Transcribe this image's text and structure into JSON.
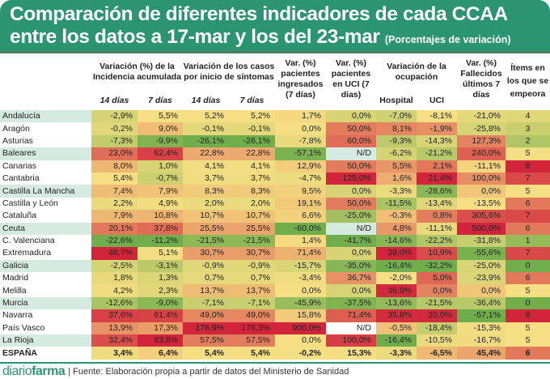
{
  "title_line1": "Comparación de diferentes indicadores de cada CCAA",
  "title_line2": "entre los datos a 17-mar y los del 23-mar",
  "title_sub": "(Porcentajes de variación)",
  "footer": {
    "logo_light": "diario",
    "logo_bold": "farma",
    "source": "| Fuente: Elaboración propia a partir de datos del Ministerio de Sanidad"
  },
  "colors": {
    "banner": "#2b9471",
    "low": "#6fae4a",
    "mid": "#f6df82",
    "high": "#d2243a",
    "nd_alt": "#d5ebe2"
  },
  "chart_data": {
    "type": "table",
    "group_headers": [
      "Variación (%)  de la Incidencia acumulada",
      "Variación de los casos por inicio de síntomas",
      "Var. (%) pacientes ingresados (7 días)",
      "Var. (%) pacientes en UCI (7 días)",
      "Variación de la ocupación",
      "Var. (%) Fallecidos últimos 7 días",
      "Ítems en los que se empeora"
    ],
    "sub_headers": [
      "14 días",
      "7 días",
      "14 días",
      "7 días",
      "Hospital",
      "UCI"
    ],
    "rows": [
      {
        "region": "Andalucía",
        "values": [
          "-2,9%",
          "5,5%",
          "5,2%",
          "5,2%",
          "1,7%",
          "0,0%",
          "-7,0%",
          "-8,1%",
          "-21,0%",
          "4"
        ]
      },
      {
        "region": "Aragón",
        "values": [
          "-0,2%",
          "9,0%",
          "-0,1%",
          "-0,1%",
          "0,0%",
          "50,0%",
          "8,1%",
          "-1,9%",
          "-25,8%",
          "3"
        ]
      },
      {
        "region": "Asturias",
        "values": [
          "-7,3%",
          "-9,9%",
          "-26,1%",
          "-26,1%",
          "-7,8%",
          "60,0%",
          "-9,3%",
          "-14,3%",
          "127,3%",
          "2"
        ]
      },
      {
        "region": "Baleares",
        "values": [
          "23,0%",
          "62,4%",
          "22,8%",
          "22,8%",
          "-57,1%",
          "N/D",
          "-6,2%",
          "-21,2%",
          "240,0%",
          "5"
        ]
      },
      {
        "region": "Canarias",
        "values": [
          "8,0%",
          "1,0%",
          "4,1%",
          "4,1%",
          "12,9%",
          "50,0%",
          "5,5%",
          "2,1%",
          "-11,1%",
          "8"
        ]
      },
      {
        "region": "Cantabria",
        "values": [
          "5,4%",
          "-0,7%",
          "3,7%",
          "3,7%",
          "-4,7%",
          "125,0%",
          "1,6%",
          "21,4%",
          "100,0%",
          "7"
        ]
      },
      {
        "region": "Castilla La Mancha",
        "values": [
          "7,4%",
          "7,9%",
          "8,3%",
          "8,3%",
          "9,5%",
          "0,0%",
          "-3,3%",
          "-28,6%",
          "0,0%",
          "5"
        ]
      },
      {
        "region": "Castilla y León",
        "values": [
          "2,2%",
          "4,9%",
          "2,0%",
          "2,0%",
          "19,1%",
          "50,0%",
          "-11,5%",
          "-13,4%",
          "-13,5%",
          "6"
        ]
      },
      {
        "region": "Cataluña",
        "values": [
          "7,9%",
          "10,8%",
          "10,7%",
          "10,7%",
          "6,6%",
          "-25,0%",
          "-0,3%",
          "0,8%",
          "305,6%",
          "7"
        ]
      },
      {
        "region": "Ceuta",
        "values": [
          "20,1%",
          "37,8%",
          "25,5%",
          "25,5%",
          "-60,0%",
          "N/D",
          "4,8%",
          "-11,1%",
          "500,0%",
          "6"
        ]
      },
      {
        "region": "C. Valenciana",
        "values": [
          "-22,6%",
          "-11,2%",
          "-21,5%",
          "-21,5%",
          "1,4%",
          "-41,7%",
          "-14,6%",
          "-22,2%",
          "-31,8%",
          "1"
        ]
      },
      {
        "region": "Extremadura",
        "values": [
          "48,7%",
          "5,1%",
          "30,7%",
          "30,7%",
          "71,4%",
          "0,0%",
          "39,0%",
          "10,9%",
          "-55,6%",
          "7"
        ]
      },
      {
        "region": "Galicia",
        "values": [
          "-2,5%",
          "-3,1%",
          "-0,9%",
          "-0,9%",
          "-15,7%",
          "-35,0%",
          "-16,4%",
          "-32,2%",
          "-25,0%",
          "0"
        ]
      },
      {
        "region": "Madrid",
        "values": [
          "1,8%",
          "1,3%",
          "0,7%",
          "0,7%",
          "-3,4%",
          "36,7%",
          "-2,0%",
          "5,0%",
          "-23,9%",
          "6"
        ]
      },
      {
        "region": "Melilla",
        "values": [
          "4,2%",
          "2,3%",
          "13,7%",
          "13,7%",
          "0,0%",
          "0,0%",
          "36,9%",
          "0,0%",
          "0,0%",
          "5"
        ]
      },
      {
        "region": "Murcia",
        "values": [
          "-12,6%",
          "-9,0%",
          "-7,1%",
          "-7,1%",
          "-45,9%",
          "-37,5%",
          "-13,6%",
          "-21,5%",
          "-36,4%",
          "0"
        ]
      },
      {
        "region": "Navarra",
        "values": [
          "37,6%",
          "61,4%",
          "49,0%",
          "49,0%",
          "15,8%",
          "71,4%",
          "35,8%",
          "20,0%",
          "-57,1%",
          "8"
        ]
      },
      {
        "region": "País Vasco",
        "values": [
          "13,9%",
          "17,3%",
          "176,9%",
          "176,3%",
          "900,0%",
          "N/D",
          "-0,5%",
          "-18,4%",
          "-15,3%",
          "5"
        ]
      },
      {
        "region": "La Rioja",
        "values": [
          "32,4%",
          "83,8%",
          "57,5%",
          "57,5%",
          "0,0%",
          "100,0%",
          "-16,4%",
          "-10,5%",
          "-16,7%",
          "5"
        ]
      }
    ],
    "total": {
      "region": "ESPAÑA",
      "values": [
        "3,4%",
        "6,4%",
        "5,4%",
        "5,4%",
        "-0,2%",
        "15,3%",
        "-3,3%",
        "-6,5%",
        "45,4%",
        "6"
      ]
    }
  }
}
